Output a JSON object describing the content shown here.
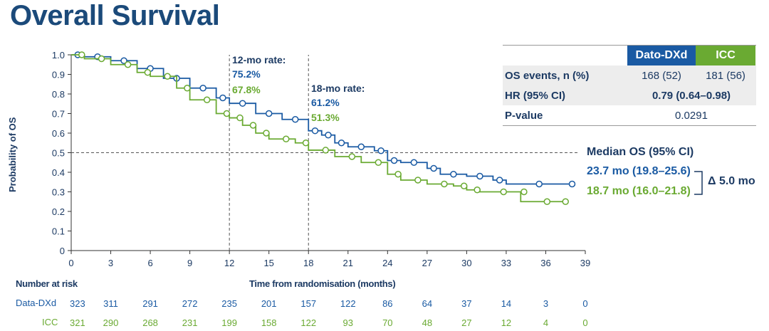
{
  "title": "Overall Survival",
  "colors": {
    "dato": "#1a5aa3",
    "icc": "#6aaa32",
    "text": "#1c3a63"
  },
  "table": {
    "headers": [
      "Dato-DXd",
      "ICC"
    ],
    "rows": [
      {
        "label": "OS events, n (%)",
        "dato": "168 (52)",
        "icc": "181 (56)"
      },
      {
        "label": "HR (95% CI)",
        "combined": "0.79 (0.64–0.98)"
      },
      {
        "label": "P-value",
        "combined": "0.0291"
      }
    ]
  },
  "median": {
    "title": "Median OS (95% CI)",
    "dato": "23.7 mo (19.8–25.6)",
    "icc": "18.7 mo (16.0–21.8)",
    "delta": "Δ 5.0 mo"
  },
  "annotations": {
    "m12": {
      "title": "12-mo rate:",
      "dato": "75.2%",
      "icc": "67.8%"
    },
    "m18": {
      "title": "18-mo rate:",
      "dato": "61.2%",
      "icc": "51.3%"
    }
  },
  "risk": {
    "title": "Number at risk",
    "dato_label": "Data-DXd",
    "icc_label": "ICC",
    "dato": [
      323,
      311,
      291,
      272,
      235,
      201,
      157,
      122,
      86,
      64,
      37,
      14,
      3,
      0
    ],
    "icc": [
      321,
      290,
      268,
      231,
      199,
      158,
      122,
      93,
      70,
      48,
      27,
      12,
      4,
      0
    ]
  },
  "chart_data": {
    "type": "line",
    "xlabel": "Time from randomisation (months)",
    "ylabel": "Probability of OS",
    "xlim": [
      0,
      39
    ],
    "ylim": [
      0,
      1.0
    ],
    "xticks": [
      0,
      3,
      6,
      9,
      12,
      15,
      18,
      21,
      24,
      27,
      30,
      33,
      36,
      39
    ],
    "yticks": [
      "0",
      "0.1",
      "0.2",
      "0.3",
      "0.4",
      "0.5",
      "0.6",
      "0.7",
      "0.8",
      "0.9",
      "1.0"
    ],
    "reference_lines": {
      "x": [
        12,
        18
      ],
      "y": [
        0.5
      ]
    },
    "series": [
      {
        "name": "Dato-DXd",
        "color": "#1a5aa3",
        "step": true,
        "x": [
          0,
          1,
          3,
          5,
          7,
          9,
          11,
          12,
          14,
          16,
          18,
          19,
          20,
          21,
          23,
          24,
          25,
          27,
          28,
          30,
          32,
          33,
          38
        ],
        "y": [
          1,
          0.99,
          0.97,
          0.93,
          0.88,
          0.83,
          0.78,
          0.752,
          0.7,
          0.67,
          0.612,
          0.59,
          0.55,
          0.53,
          0.51,
          0.46,
          0.45,
          0.42,
          0.39,
          0.38,
          0.36,
          0.34,
          0.34
        ]
      },
      {
        "name": "ICC",
        "color": "#6aaa32",
        "step": true,
        "x": [
          0,
          1,
          3,
          5,
          6,
          8,
          9,
          11,
          12,
          13,
          14,
          15,
          17,
          18,
          20,
          22,
          24,
          25,
          27,
          29,
          30,
          31,
          34,
          34.1,
          37.5
        ],
        "y": [
          1,
          0.98,
          0.95,
          0.91,
          0.89,
          0.83,
          0.77,
          0.7,
          0.678,
          0.64,
          0.6,
          0.57,
          0.55,
          0.513,
          0.48,
          0.45,
          0.39,
          0.36,
          0.34,
          0.33,
          0.31,
          0.3,
          0.3,
          0.25,
          0.25
        ]
      }
    ]
  }
}
